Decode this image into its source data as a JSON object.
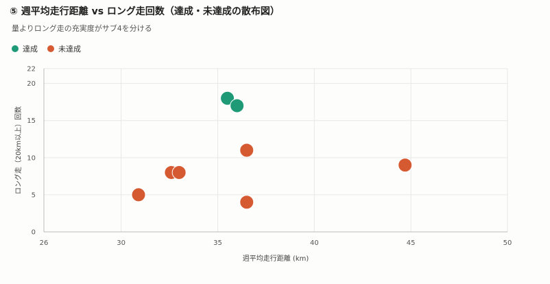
{
  "header": {
    "title": "⑤ 週平均走行距離 vs ロング走回数（達成・未達成の散布図）",
    "subtitle": "量よりロング走の充実度がサブ4を分ける"
  },
  "colors": {
    "achieved": "#1f9a76",
    "not_achieved": "#d65a31",
    "grid": "#e8e8e8",
    "axis": "#bbbbbb"
  },
  "chart_data": {
    "type": "scatter",
    "title": "⑤ 週平均走行距離 vs ロング走回数（達成・未達成の散布図）",
    "subtitle": "量よりロング走の充実度がサブ4を分ける",
    "xlabel": "週平均走行距離 (km)",
    "ylabel": "ロング走（20km以上）回数",
    "xlim": [
      26,
      50
    ],
    "ylim": [
      0,
      22
    ],
    "xticks": [
      26,
      30,
      35,
      40,
      45,
      50
    ],
    "yticks": [
      0,
      5,
      10,
      15,
      20,
      22
    ],
    "grid": true,
    "legend_position": "top-left",
    "series": [
      {
        "name": "達成",
        "color_key": "achieved",
        "points": [
          {
            "x": 35.5,
            "y": 18
          },
          {
            "x": 36.0,
            "y": 17
          }
        ]
      },
      {
        "name": "未達成",
        "color_key": "not_achieved",
        "points": [
          {
            "x": 30.9,
            "y": 5
          },
          {
            "x": 32.6,
            "y": 8
          },
          {
            "x": 33.0,
            "y": 8
          },
          {
            "x": 36.5,
            "y": 11
          },
          {
            "x": 36.5,
            "y": 4
          },
          {
            "x": 44.7,
            "y": 9
          }
        ]
      }
    ]
  }
}
